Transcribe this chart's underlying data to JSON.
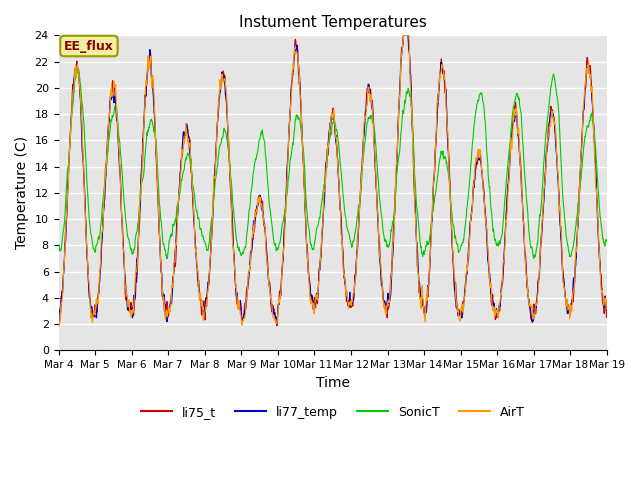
{
  "title": "Instument Temperatures",
  "xlabel": "Time",
  "ylabel": "Temperature (C)",
  "ylim": [
    0,
    24
  ],
  "background_color": "#e5e5e5",
  "annotation_text": "EE_flux",
  "annotation_color": "#8b0000",
  "annotation_bg": "#f0f0a0",
  "annotation_border": "#999900",
  "series": {
    "li75_t": {
      "color": "#cc0000",
      "lw": 0.8
    },
    "li77_temp": {
      "color": "#0000cc",
      "lw": 0.8
    },
    "SonicT": {
      "color": "#00cc00",
      "lw": 0.8
    },
    "AirT": {
      "color": "#ff9900",
      "lw": 0.8
    }
  },
  "xtick_labels": [
    "Mar 4",
    "Mar 5",
    "Mar 6",
    "Mar 7",
    "Mar 8",
    "Mar 9",
    "Mar 10",
    "Mar 11",
    "Mar 12",
    "Mar 13",
    "Mar 14",
    "Mar 15",
    "Mar 16",
    "Mar 17",
    "Mar 18",
    "Mar 19"
  ],
  "grid_color": "#ffffff",
  "n_days": 15,
  "pts_per_day": 96
}
